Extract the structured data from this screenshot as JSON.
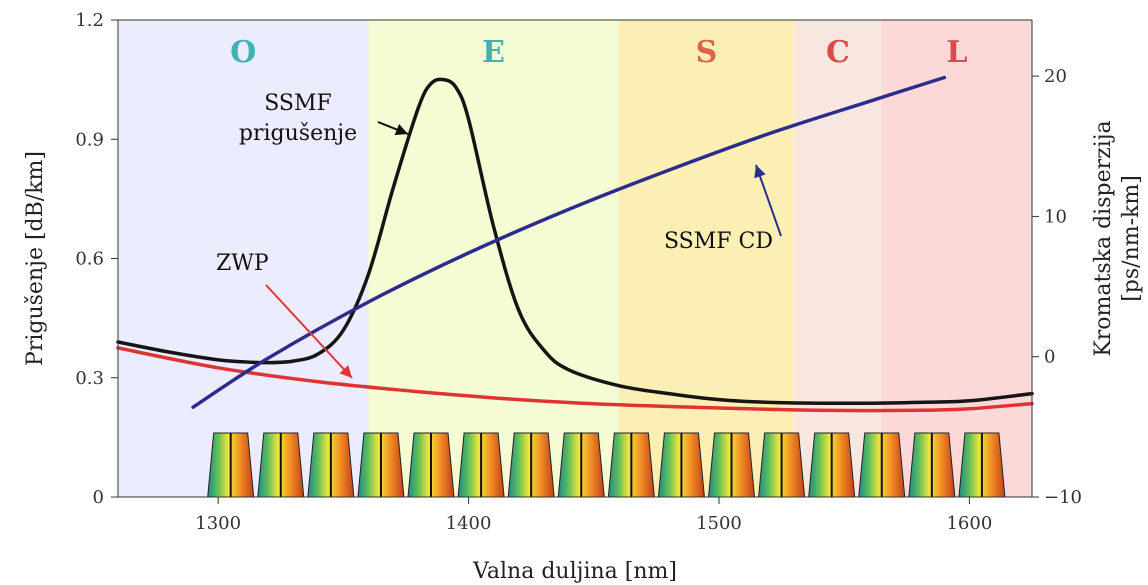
{
  "chart_data": {
    "type": "line",
    "xlabel": "Valna duljina [nm]",
    "ylabel": "Prigušenje [dB/km]",
    "ylabel_right": [
      "Kromatska disperzija",
      "[ps/nm-km]"
    ],
    "xlim": [
      1260,
      1625
    ],
    "ylim": [
      0,
      1.2
    ],
    "ylim_right": [
      -10,
      24
    ],
    "x_ticks": [
      1300,
      1400,
      1500,
      1600
    ],
    "y_ticks": [
      0,
      0.3,
      0.6,
      0.9,
      1.2
    ],
    "y_tick_labels": [
      "0",
      "0.3",
      "0.6",
      "0.9",
      "1.2"
    ],
    "y_right_ticks": [
      -10,
      0,
      10,
      20
    ],
    "y_right_tick_labels": [
      "−10",
      "0",
      "10",
      "20"
    ],
    "bands": [
      {
        "label": "O",
        "x0": 1260,
        "x1": 1360,
        "fill": "#ececff",
        "label_color": "#3fb3b3"
      },
      {
        "label": "E",
        "x0": 1360,
        "x1": 1460,
        "fill": "#f5fbd2",
        "label_color": "#3fb3b3"
      },
      {
        "label": "S",
        "x0": 1460,
        "x1": 1530,
        "fill": "#fcefb4",
        "label_color": "#e0604a"
      },
      {
        "label": "C",
        "x0": 1530,
        "x1": 1565,
        "fill": "#f8e6e0",
        "label_color": "#d94a4a"
      },
      {
        "label": "L",
        "x0": 1565,
        "x1": 1625,
        "fill": "#fcd9d9",
        "label_color": "#d94a4a"
      }
    ],
    "series": [
      {
        "name": "SSMF prigušenje",
        "axis": "left",
        "color": "#151515",
        "x": [
          1260,
          1280,
          1300,
          1310,
          1320,
          1330,
          1340,
          1350,
          1360,
          1370,
          1380,
          1385,
          1390,
          1395,
          1400,
          1410,
          1420,
          1430,
          1440,
          1460,
          1480,
          1500,
          1520,
          1540,
          1560,
          1580,
          1600,
          1625
        ],
        "y": [
          0.39,
          0.365,
          0.345,
          0.34,
          0.338,
          0.342,
          0.36,
          0.42,
          0.56,
          0.78,
          0.98,
          1.04,
          1.05,
          1.03,
          0.95,
          0.68,
          0.47,
          0.37,
          0.32,
          0.28,
          0.26,
          0.245,
          0.238,
          0.236,
          0.236,
          0.238,
          0.242,
          0.26
        ]
      },
      {
        "name": "ZWP",
        "axis": "left",
        "color": "#e03434",
        "x": [
          1260,
          1300,
          1340,
          1380,
          1420,
          1460,
          1500,
          1540,
          1580,
          1600,
          1625
        ],
        "y": [
          0.375,
          0.325,
          0.29,
          0.265,
          0.245,
          0.232,
          0.224,
          0.218,
          0.218,
          0.222,
          0.235
        ]
      },
      {
        "name": "SSMF CD",
        "axis": "right",
        "color": "#2c2c8c",
        "x": [
          1290,
          1320,
          1360,
          1400,
          1440,
          1480,
          1520,
          1560,
          1590
        ],
        "y": [
          -3.6,
          -0.1,
          3.9,
          7.4,
          10.5,
          13.3,
          15.9,
          18.2,
          19.9
        ]
      }
    ],
    "annotations": [
      {
        "lines": [
          "SSMF",
          "prigušenje"
        ],
        "color": "#111111"
      },
      {
        "lines": [
          "ZWP"
        ],
        "color": "#e03434"
      },
      {
        "lines": [
          "SSMF CD"
        ],
        "color": "#111111"
      }
    ],
    "channels": [
      1305,
      1325,
      1345,
      1365,
      1385,
      1405,
      1425,
      1445,
      1465,
      1485,
      1505,
      1525,
      1545,
      1565,
      1585,
      1605
    ]
  }
}
